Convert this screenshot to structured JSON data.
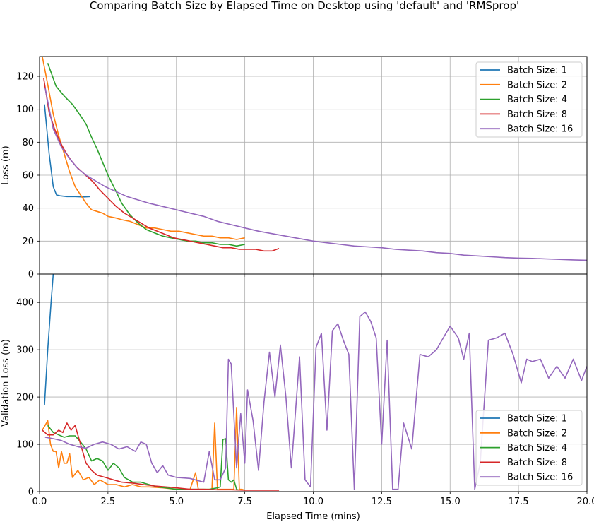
{
  "title": "Comparing Batch Size by Elapsed Time on Desktop using 'default' and 'RMSprop'",
  "colors": {
    "bs1": "#1f77b4",
    "bs2": "#ff7f0e",
    "bs4": "#2ca02c",
    "bs8": "#d62728",
    "bs16": "#9467bd",
    "grid": "#b0b0b0"
  },
  "chart_data": [
    {
      "type": "line",
      "panel": "top",
      "ylabel": "Loss (m)",
      "xlim": [
        0,
        20
      ],
      "ylim": [
        0,
        132
      ],
      "yticks": [
        0,
        20,
        40,
        60,
        80,
        100,
        120
      ],
      "grid": true,
      "legend": "top-right",
      "series": [
        {
          "name": "Batch Size: 1",
          "color": "bs1",
          "x": [
            0.18,
            0.35,
            0.5,
            0.62,
            0.75,
            1.0,
            1.3,
            1.6,
            1.85
          ],
          "y": [
            103,
            73,
            53,
            48,
            47.5,
            47,
            47,
            46.8,
            47
          ]
        },
        {
          "name": "Batch Size: 2",
          "color": "bs2",
          "x": [
            0.1,
            0.3,
            0.5,
            0.7,
            0.9,
            1.1,
            1.3,
            1.5,
            1.7,
            1.9,
            2.1,
            2.3,
            2.5,
            2.8,
            3.0,
            3.3,
            3.6,
            3.9,
            4.2,
            4.5,
            4.8,
            5.1,
            5.4,
            5.7,
            6.0,
            6.3,
            6.6,
            6.9,
            7.2,
            7.5
          ],
          "y": [
            132,
            115,
            97,
            84,
            73,
            62,
            53,
            48,
            43,
            39,
            38,
            37,
            35,
            34,
            33,
            32,
            30,
            28,
            28,
            27,
            26,
            26,
            25,
            24,
            23,
            23,
            22,
            22,
            21,
            22
          ]
        },
        {
          "name": "Batch Size: 4",
          "color": "bs4",
          "x": [
            0.3,
            0.6,
            0.9,
            1.2,
            1.5,
            1.7,
            1.9,
            2.1,
            2.3,
            2.5,
            2.8,
            3.0,
            3.3,
            3.6,
            3.9,
            4.2,
            4.5,
            4.8,
            5.1,
            5.4,
            5.7,
            6.0,
            6.3,
            6.6,
            6.9,
            7.2,
            7.5
          ],
          "y": [
            128,
            114,
            108,
            103,
            96,
            91,
            83,
            76,
            68,
            60,
            50,
            43,
            36,
            31,
            27,
            25,
            23,
            22,
            21,
            20,
            20,
            19,
            19,
            18,
            18,
            17,
            18
          ]
        },
        {
          "name": "Batch Size: 8",
          "color": "bs8",
          "x": [
            0.15,
            0.35,
            0.55,
            0.75,
            0.95,
            1.15,
            1.35,
            1.55,
            1.75,
            1.95,
            2.2,
            2.5,
            2.8,
            3.1,
            3.4,
            3.7,
            4.0,
            4.3,
            4.6,
            4.9,
            5.2,
            5.5,
            5.8,
            6.1,
            6.4,
            6.7,
            7.0,
            7.3,
            7.6,
            7.9,
            8.2,
            8.5,
            8.75
          ],
          "y": [
            119,
            98,
            88,
            80,
            74,
            69,
            65,
            62,
            59,
            56,
            51,
            46,
            41,
            37,
            34,
            31,
            28,
            26,
            24,
            22,
            21,
            20,
            19,
            18,
            17,
            16,
            16,
            15,
            15,
            15,
            14,
            14,
            15.5
          ]
        },
        {
          "name": "Batch Size: 16",
          "color": "bs16",
          "x": [
            0.2,
            0.5,
            0.8,
            1.1,
            1.4,
            1.7,
            2.0,
            2.4,
            2.8,
            3.2,
            3.6,
            4.0,
            4.5,
            5.0,
            5.5,
            6.0,
            6.5,
            7.0,
            7.5,
            8.0,
            8.5,
            9.0,
            9.5,
            10.0,
            10.5,
            11.0,
            11.5,
            12.0,
            12.5,
            13.0,
            13.5,
            14.0,
            14.5,
            15.0,
            15.5,
            16.0,
            16.5,
            17.0,
            17.5,
            18.0,
            18.5,
            19.0,
            19.5,
            20.0
          ],
          "y": [
            113,
            88,
            77,
            70,
            64,
            60,
            57,
            53,
            50,
            47,
            45,
            43,
            41,
            39,
            37,
            35,
            32,
            30,
            28,
            26,
            24.5,
            23,
            21.5,
            20,
            19,
            18,
            17,
            16.5,
            16,
            15,
            14.5,
            14,
            13,
            12.5,
            11.5,
            11,
            10.5,
            10,
            9.7,
            9.5,
            9.2,
            8.9,
            8.6,
            8.4
          ]
        }
      ]
    },
    {
      "type": "line",
      "panel": "bottom",
      "xlabel": "Elapsed Time (mins)",
      "ylabel": "Validation Loss (m)",
      "xlim": [
        0,
        20
      ],
      "ylim": [
        0,
        460
      ],
      "xticks": [
        0.0,
        2.5,
        5.0,
        7.5,
        10.0,
        12.5,
        15.0,
        17.5,
        20.0
      ],
      "xticklabels": [
        "0.0",
        "2.5",
        "5.0",
        "7.5",
        "10.0",
        "12.5",
        "15.0",
        "17.5",
        "20.0"
      ],
      "yticks": [
        0,
        100,
        200,
        300,
        400
      ],
      "grid": true,
      "legend": "bottom-right",
      "series": [
        {
          "name": "Batch Size: 1",
          "color": "bs1",
          "x": [
            0.18,
            0.3,
            0.42,
            0.5
          ],
          "y": [
            183,
            300,
            400,
            460
          ]
        },
        {
          "name": "Batch Size: 2",
          "color": "bs2",
          "x": [
            0.1,
            0.2,
            0.3,
            0.4,
            0.5,
            0.6,
            0.7,
            0.8,
            0.9,
            1.0,
            1.1,
            1.2,
            1.4,
            1.6,
            1.8,
            2.0,
            2.2,
            2.5,
            2.8,
            3.1,
            3.4,
            3.7,
            4.0,
            4.5,
            5.0,
            5.5,
            5.7,
            5.8,
            6.0,
            6.2,
            6.3,
            6.4,
            6.5,
            6.6,
            6.8,
            7.0,
            7.1,
            7.2,
            7.3,
            7.4,
            7.5
          ],
          "y": [
            130,
            140,
            150,
            100,
            85,
            85,
            50,
            85,
            60,
            60,
            80,
            30,
            45,
            25,
            30,
            15,
            25,
            15,
            15,
            10,
            15,
            10,
            10,
            8,
            5,
            5,
            40,
            5,
            5,
            5,
            5,
            145,
            5,
            5,
            5,
            5,
            5,
            178,
            5,
            5,
            3
          ]
        },
        {
          "name": "Batch Size: 4",
          "color": "bs4",
          "x": [
            0.3,
            0.5,
            0.7,
            0.9,
            1.1,
            1.3,
            1.5,
            1.7,
            1.9,
            2.1,
            2.3,
            2.5,
            2.7,
            2.9,
            3.1,
            3.4,
            3.7,
            4.0,
            4.3,
            4.6,
            5.0,
            5.4,
            5.8,
            6.2,
            6.5,
            6.6,
            6.7,
            6.8,
            6.9,
            7.0,
            7.1,
            7.2,
            7.3
          ],
          "y": [
            140,
            125,
            120,
            115,
            118,
            118,
            105,
            90,
            65,
            70,
            65,
            45,
            60,
            50,
            30,
            20,
            20,
            15,
            10,
            8,
            5,
            5,
            5,
            5,
            8,
            10,
            110,
            112,
            25,
            20,
            25,
            5,
            3
          ]
        },
        {
          "name": "Batch Size: 8",
          "color": "bs8",
          "x": [
            0.1,
            0.3,
            0.5,
            0.7,
            0.85,
            1.0,
            1.15,
            1.3,
            1.5,
            1.7,
            1.9,
            2.1,
            2.4,
            2.7,
            3.0,
            3.4,
            3.8,
            4.2,
            4.6,
            5.0,
            5.5,
            6.0,
            6.5,
            7.0,
            7.5,
            8.0,
            8.5,
            8.75
          ],
          "y": [
            130,
            120,
            120,
            130,
            125,
            145,
            130,
            140,
            100,
            60,
            45,
            35,
            30,
            25,
            20,
            18,
            15,
            12,
            10,
            8,
            5,
            5,
            4,
            4,
            3,
            3,
            3,
            3
          ]
        },
        {
          "name": "Batch Size: 16",
          "color": "bs16",
          "x": [
            0.2,
            0.5,
            0.8,
            1.1,
            1.4,
            1.7,
            2.0,
            2.3,
            2.6,
            2.9,
            3.2,
            3.5,
            3.7,
            3.9,
            4.1,
            4.3,
            4.5,
            4.7,
            5.0,
            5.5,
            6.0,
            6.2,
            6.4,
            6.6,
            6.8,
            6.9,
            7.0,
            7.2,
            7.35,
            7.5,
            7.6,
            7.8,
            8.0,
            8.2,
            8.4,
            8.6,
            8.8,
            9.0,
            9.2,
            9.5,
            9.7,
            9.9,
            10.1,
            10.3,
            10.5,
            10.7,
            10.9,
            11.1,
            11.3,
            11.5,
            11.7,
            11.9,
            12.1,
            12.3,
            12.5,
            12.7,
            12.9,
            13.1,
            13.3,
            13.6,
            13.9,
            14.2,
            14.5,
            14.8,
            15.0,
            15.3,
            15.5,
            15.7,
            15.9,
            16.1,
            16.4,
            16.7,
            17.0,
            17.3,
            17.6,
            17.8,
            18.0,
            18.3,
            18.6,
            18.9,
            19.2,
            19.5,
            19.8,
            20.0
          ],
          "y": [
            115,
            112,
            108,
            100,
            95,
            92,
            100,
            105,
            100,
            90,
            95,
            85,
            105,
            100,
            60,
            40,
            55,
            35,
            30,
            28,
            20,
            85,
            25,
            25,
            50,
            280,
            270,
            50,
            165,
            60,
            215,
            150,
            45,
            190,
            295,
            200,
            310,
            200,
            50,
            285,
            25,
            10,
            305,
            335,
            130,
            340,
            355,
            320,
            290,
            5,
            370,
            380,
            360,
            325,
            100,
            320,
            5,
            5,
            145,
            90,
            290,
            285,
            300,
            330,
            350,
            325,
            280,
            335,
            5,
            60,
            320,
            325,
            335,
            290,
            230,
            280,
            275,
            280,
            240,
            265,
            240,
            280,
            235,
            265
          ]
        }
      ]
    }
  ]
}
